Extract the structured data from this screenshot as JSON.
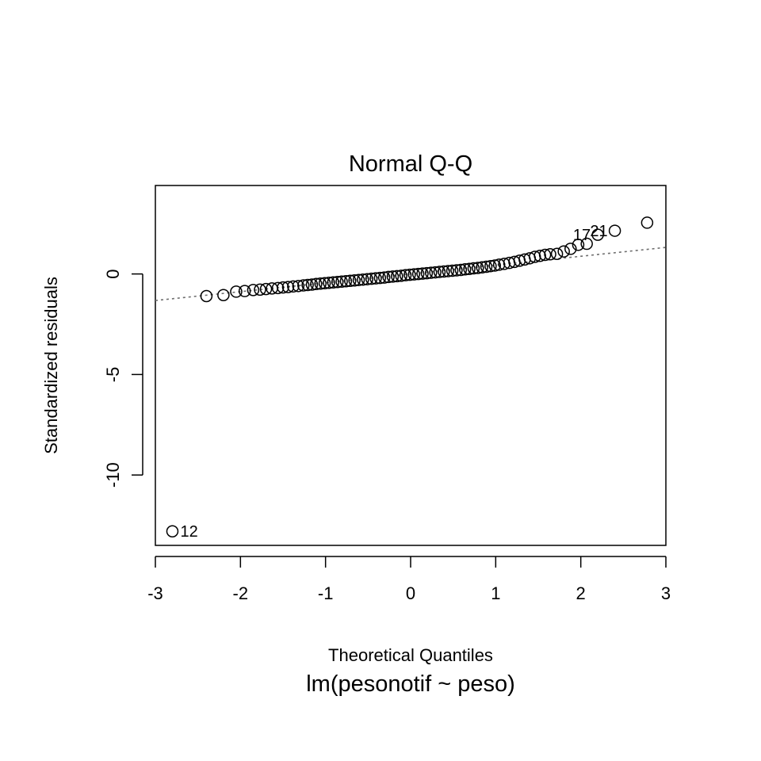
{
  "chart_data": {
    "type": "scatter",
    "title": "Normal Q-Q",
    "xlabel": "Theoretical Quantiles",
    "ylabel": "Standardized residuals",
    "subtitle": "lm(pesonotif ~ peso)",
    "xlim": [
      -3,
      3
    ],
    "ylim": [
      -13.5,
      4.4
    ],
    "x_ticks": [
      -3,
      -2,
      -1,
      0,
      1,
      2,
      3
    ],
    "y_ticks": [
      0,
      -5,
      -10
    ],
    "grid": false,
    "reference_line": {
      "slope": 0.44,
      "intercept": 0.0,
      "style": "dotted",
      "color": "#6e6e6e"
    },
    "points": [
      {
        "x": -2.8,
        "y": -12.8,
        "label": "12"
      },
      {
        "x": -2.4,
        "y": -1.1
      },
      {
        "x": -2.2,
        "y": -1.05
      },
      {
        "x": -2.05,
        "y": -0.88
      },
      {
        "x": -1.95,
        "y": -0.85
      },
      {
        "x": -1.85,
        "y": -0.8
      },
      {
        "x": -1.77,
        "y": -0.78
      },
      {
        "x": -1.7,
        "y": -0.75
      },
      {
        "x": -1.63,
        "y": -0.72
      },
      {
        "x": -1.56,
        "y": -0.7
      },
      {
        "x": -1.5,
        "y": -0.67
      },
      {
        "x": -1.44,
        "y": -0.65
      },
      {
        "x": -1.38,
        "y": -0.62
      },
      {
        "x": -1.32,
        "y": -0.6
      },
      {
        "x": -1.26,
        "y": -0.57
      },
      {
        "x": -1.21,
        "y": -0.55
      },
      {
        "x": -1.16,
        "y": -0.53
      },
      {
        "x": -1.11,
        "y": -0.5
      },
      {
        "x": -1.06,
        "y": -0.48
      },
      {
        "x": -1.01,
        "y": -0.46
      },
      {
        "x": -0.96,
        "y": -0.44
      },
      {
        "x": -0.91,
        "y": -0.42
      },
      {
        "x": -0.86,
        "y": -0.4
      },
      {
        "x": -0.81,
        "y": -0.38
      },
      {
        "x": -0.76,
        "y": -0.36
      },
      {
        "x": -0.71,
        "y": -0.34
      },
      {
        "x": -0.66,
        "y": -0.32
      },
      {
        "x": -0.61,
        "y": -0.3
      },
      {
        "x": -0.56,
        "y": -0.28
      },
      {
        "x": -0.51,
        "y": -0.26
      },
      {
        "x": -0.46,
        "y": -0.24
      },
      {
        "x": -0.41,
        "y": -0.22
      },
      {
        "x": -0.36,
        "y": -0.2
      },
      {
        "x": -0.31,
        "y": -0.18
      },
      {
        "x": -0.26,
        "y": -0.15
      },
      {
        "x": -0.21,
        "y": -0.13
      },
      {
        "x": -0.16,
        "y": -0.11
      },
      {
        "x": -0.11,
        "y": -0.09
      },
      {
        "x": -0.06,
        "y": -0.06
      },
      {
        "x": -0.01,
        "y": -0.04
      },
      {
        "x": 0.04,
        "y": -0.02
      },
      {
        "x": 0.09,
        "y": 0.0
      },
      {
        "x": 0.14,
        "y": 0.02
      },
      {
        "x": 0.19,
        "y": 0.04
      },
      {
        "x": 0.24,
        "y": 0.06
      },
      {
        "x": 0.29,
        "y": 0.08
      },
      {
        "x": 0.34,
        "y": 0.1
      },
      {
        "x": 0.39,
        "y": 0.12
      },
      {
        "x": 0.44,
        "y": 0.14
      },
      {
        "x": 0.49,
        "y": 0.16
      },
      {
        "x": 0.54,
        "y": 0.18
      },
      {
        "x": 0.59,
        "y": 0.2
      },
      {
        "x": 0.64,
        "y": 0.23
      },
      {
        "x": 0.69,
        "y": 0.25
      },
      {
        "x": 0.74,
        "y": 0.28
      },
      {
        "x": 0.79,
        "y": 0.3
      },
      {
        "x": 0.84,
        "y": 0.33
      },
      {
        "x": 0.89,
        "y": 0.36
      },
      {
        "x": 0.94,
        "y": 0.39
      },
      {
        "x": 0.99,
        "y": 0.42
      },
      {
        "x": 1.04,
        "y": 0.46
      },
      {
        "x": 1.1,
        "y": 0.5
      },
      {
        "x": 1.16,
        "y": 0.55
      },
      {
        "x": 1.22,
        "y": 0.6
      },
      {
        "x": 1.28,
        "y": 0.66
      },
      {
        "x": 1.34,
        "y": 0.72
      },
      {
        "x": 1.4,
        "y": 0.78
      },
      {
        "x": 1.46,
        "y": 0.85
      },
      {
        "x": 1.52,
        "y": 0.9
      },
      {
        "x": 1.58,
        "y": 0.95
      },
      {
        "x": 1.64,
        "y": 0.98
      },
      {
        "x": 1.72,
        "y": 1.0
      },
      {
        "x": 1.8,
        "y": 1.12
      },
      {
        "x": 1.88,
        "y": 1.25
      },
      {
        "x": 1.97,
        "y": 1.45
      },
      {
        "x": 2.07,
        "y": 1.5
      },
      {
        "x": 2.2,
        "y": 1.95,
        "label": "17"
      },
      {
        "x": 2.4,
        "y": 2.15,
        "label": "21"
      },
      {
        "x": 2.78,
        "y": 2.55
      }
    ]
  }
}
